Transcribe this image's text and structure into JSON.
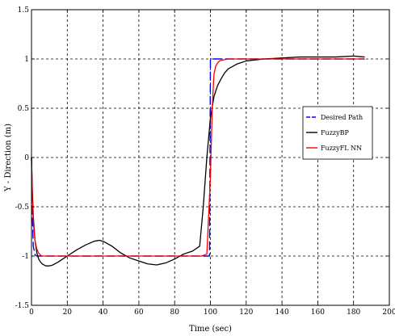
{
  "chart_data": {
    "type": "line",
    "title": "",
    "xlabel": "Time (sec)",
    "ylabel": "Y - Direction (m)",
    "xlim": [
      0,
      200
    ],
    "ylim": [
      -1.5,
      1.5
    ],
    "xticks": [
      0,
      20,
      40,
      60,
      80,
      100,
      120,
      140,
      160,
      180,
      200
    ],
    "yticks": [
      -1.5,
      -1,
      -0.5,
      0,
      0.5,
      1,
      1.5
    ],
    "xtick_labels": [
      "0",
      "20",
      "40",
      "60",
      "80",
      "100",
      "120",
      "140",
      "160",
      "180",
      "200"
    ],
    "ytick_labels": [
      "-1.5",
      "-1",
      "-0.5",
      "0",
      "0.5",
      "1",
      "1.5"
    ],
    "grid": true,
    "legend_position": "right",
    "series": [
      {
        "name": "Desired Path",
        "color": "#0000ff",
        "dash": "dash",
        "x": [
          0,
          0.5,
          1,
          2,
          3,
          4,
          5,
          6,
          8,
          98,
          99.5,
          100,
          101,
          186
        ],
        "y": [
          0,
          -0.6,
          -0.9,
          -0.99,
          -1,
          -1,
          -1,
          -1,
          -1,
          -1,
          -1,
          1,
          1,
          1
        ]
      },
      {
        "name": "FuzzyBP",
        "color": "#000000",
        "dash": "solid",
        "x": [
          0,
          0.5,
          1,
          2,
          3,
          4,
          5,
          6,
          8,
          10,
          12,
          15,
          20,
          25,
          30,
          35,
          38,
          40,
          45,
          50,
          55,
          60,
          65,
          70,
          75,
          80,
          85,
          90,
          94,
          96,
          98,
          100,
          102,
          104,
          106,
          108,
          110,
          115,
          120,
          130,
          140,
          150,
          160,
          170,
          180,
          186
        ],
        "y": [
          0,
          -0.35,
          -0.6,
          -0.85,
          -0.97,
          -1.03,
          -1.06,
          -1.08,
          -1.1,
          -1.1,
          -1.09,
          -1.06,
          -1.0,
          -0.94,
          -0.89,
          -0.85,
          -0.84,
          -0.85,
          -0.9,
          -0.97,
          -1.02,
          -1.05,
          -1.08,
          -1.09,
          -1.07,
          -1.03,
          -0.98,
          -0.95,
          -0.9,
          -0.5,
          0.0,
          0.4,
          0.62,
          0.73,
          0.8,
          0.86,
          0.9,
          0.95,
          0.98,
          1.0,
          1.01,
          1.02,
          1.02,
          1.02,
          1.03,
          1.02
        ]
      },
      {
        "name": "FuzzyFL NN",
        "color": "#ff0000",
        "dash": "solid",
        "x": [
          0,
          0.5,
          1,
          2,
          3,
          4,
          5,
          6,
          8,
          10,
          15,
          20,
          40,
          60,
          80,
          95,
          98,
          100,
          101,
          102,
          103,
          104,
          105,
          107,
          110,
          115,
          120,
          130,
          140,
          150,
          160,
          170,
          180,
          186
        ],
        "y": [
          0,
          -0.4,
          -0.65,
          -0.85,
          -0.93,
          -0.97,
          -0.99,
          -1.0,
          -1.0,
          -1.0,
          -1.0,
          -1.0,
          -1.0,
          -1.0,
          -1.0,
          -1.0,
          -0.98,
          -0.2,
          0.5,
          0.85,
          0.93,
          0.96,
          0.98,
          0.99,
          1.0,
          1.0,
          1.0,
          1.0,
          1.0,
          1.0,
          1.0,
          1.0,
          1.0,
          1.0
        ]
      }
    ]
  }
}
